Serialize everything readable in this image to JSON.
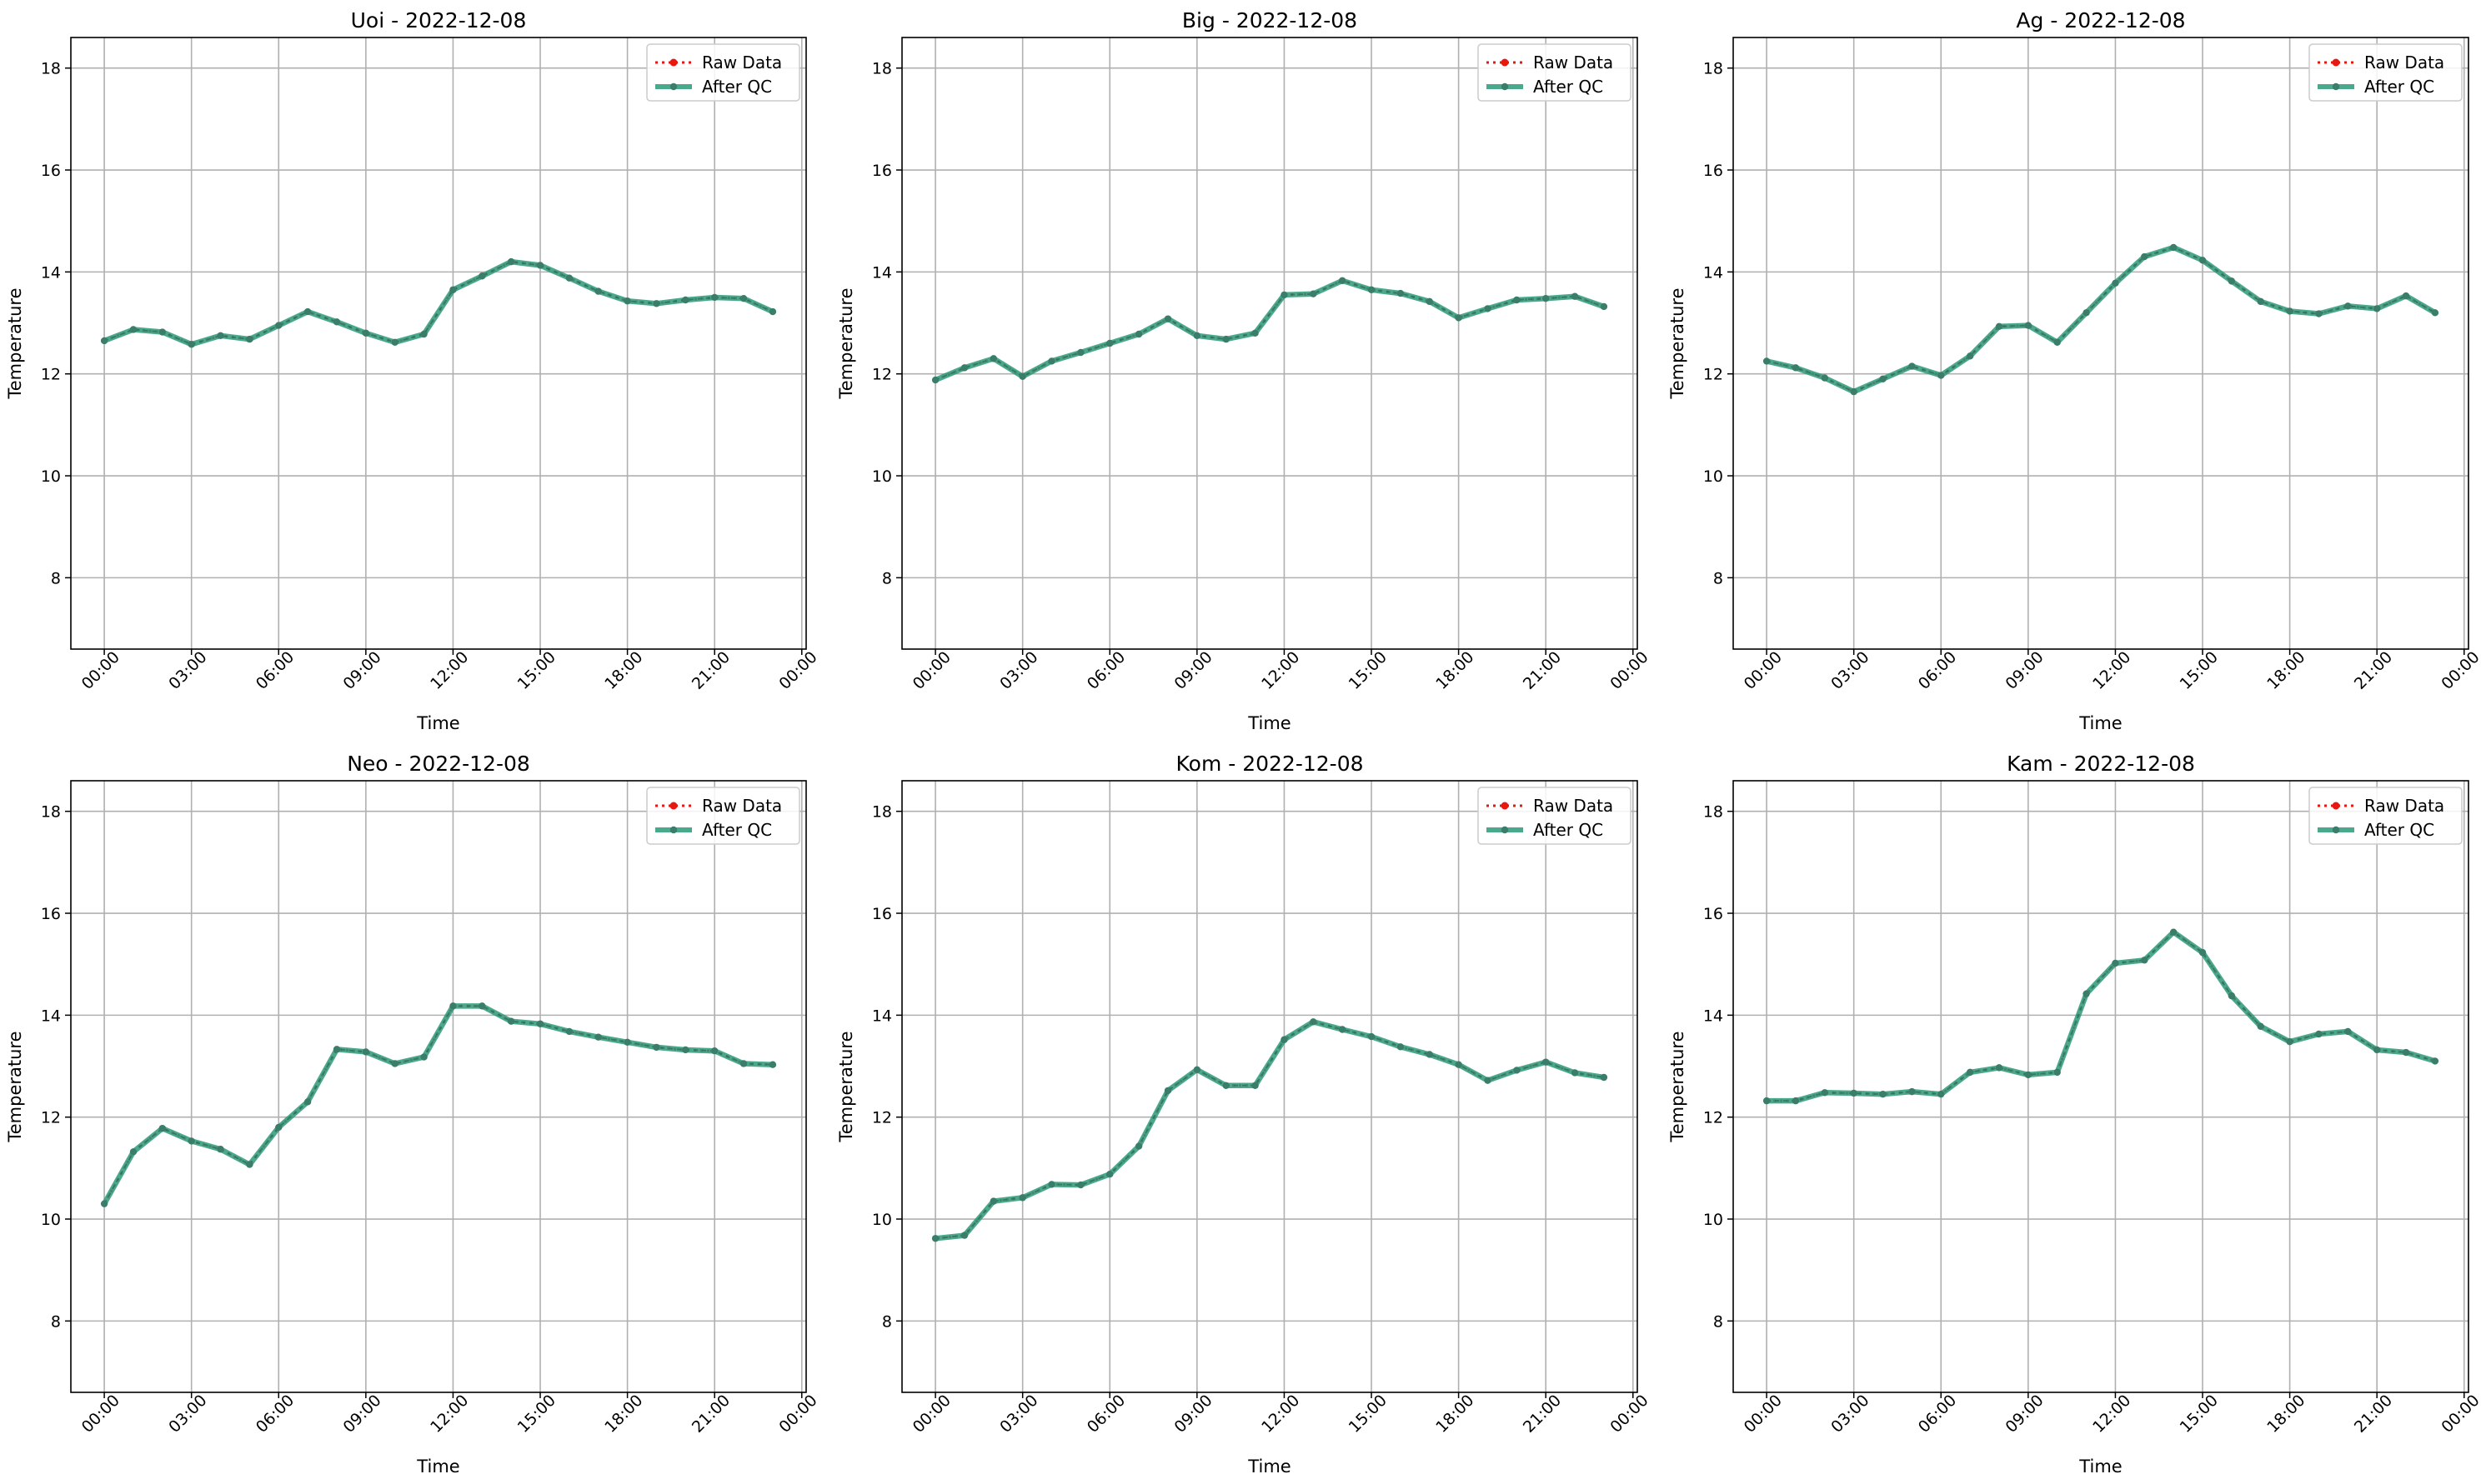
{
  "figure": {
    "legend_placement": "upper right",
    "grid": true,
    "colors": {
      "raw": "#e8170f",
      "after_qc": "#2a9a78",
      "marker": "#3a7d6a",
      "grid": "#b0b0b0"
    }
  },
  "chart_data": [
    {
      "type": "line",
      "title": "Uoi - 2022-12-08",
      "xlabel": "Time",
      "ylabel": "Temperature",
      "ylim": [
        6.6,
        18.6
      ],
      "yticks": [
        "8",
        "10",
        "12",
        "14",
        "16",
        "18"
      ],
      "xticks": [
        "00:00",
        "03:00",
        "06:00",
        "09:00",
        "12:00",
        "15:00",
        "18:00",
        "21:00",
        "00:00"
      ],
      "legend": [
        "Raw Data",
        "After QC"
      ],
      "x": [
        "00:00",
        "01:00",
        "02:00",
        "03:00",
        "04:00",
        "05:00",
        "06:00",
        "07:00",
        "08:00",
        "09:00",
        "10:00",
        "11:00",
        "12:00",
        "13:00",
        "14:00",
        "15:00",
        "16:00",
        "17:00",
        "18:00",
        "19:00",
        "20:00",
        "21:00",
        "22:00",
        "23:00"
      ],
      "series": [
        {
          "name": "Raw Data",
          "values": [
            12.65,
            12.87,
            12.82,
            12.58,
            12.75,
            12.68,
            12.95,
            13.22,
            13.02,
            12.8,
            12.62,
            12.78,
            13.65,
            13.92,
            14.2,
            14.13,
            13.88,
            13.62,
            13.43,
            13.38,
            13.45,
            13.5,
            13.48,
            13.22
          ]
        },
        {
          "name": "After QC",
          "values": [
            12.65,
            12.87,
            12.82,
            12.58,
            12.75,
            12.68,
            12.95,
            13.22,
            13.02,
            12.8,
            12.62,
            12.78,
            13.65,
            13.92,
            14.2,
            14.13,
            13.88,
            13.62,
            13.43,
            13.38,
            13.45,
            13.5,
            13.48,
            13.22
          ]
        }
      ]
    },
    {
      "type": "line",
      "title": "Big - 2022-12-08",
      "xlabel": "Time",
      "ylabel": "Temperature",
      "ylim": [
        6.6,
        18.6
      ],
      "yticks": [
        "8",
        "10",
        "12",
        "14",
        "16",
        "18"
      ],
      "xticks": [
        "00:00",
        "03:00",
        "06:00",
        "09:00",
        "12:00",
        "15:00",
        "18:00",
        "21:00",
        "00:00"
      ],
      "legend": [
        "Raw Data",
        "After QC"
      ],
      "x": [
        "00:00",
        "01:00",
        "02:00",
        "03:00",
        "04:00",
        "05:00",
        "06:00",
        "07:00",
        "08:00",
        "09:00",
        "10:00",
        "11:00",
        "12:00",
        "13:00",
        "14:00",
        "15:00",
        "16:00",
        "17:00",
        "18:00",
        "19:00",
        "20:00",
        "21:00",
        "22:00",
        "23:00"
      ],
      "series": [
        {
          "name": "Raw Data",
          "values": [
            11.88,
            12.12,
            12.3,
            11.95,
            12.25,
            12.42,
            12.6,
            12.78,
            13.08,
            12.75,
            12.68,
            12.8,
            13.55,
            13.57,
            13.83,
            13.65,
            13.58,
            13.42,
            13.1,
            13.28,
            13.45,
            13.48,
            13.52,
            13.32
          ]
        },
        {
          "name": "After QC",
          "values": [
            11.88,
            12.12,
            12.3,
            11.95,
            12.25,
            12.42,
            12.6,
            12.78,
            13.08,
            12.75,
            12.68,
            12.8,
            13.55,
            13.57,
            13.83,
            13.65,
            13.58,
            13.42,
            13.1,
            13.28,
            13.45,
            13.48,
            13.52,
            13.32
          ]
        }
      ]
    },
    {
      "type": "line",
      "title": "Ag - 2022-12-08",
      "xlabel": "Time",
      "ylabel": "Temperature",
      "ylim": [
        6.6,
        18.6
      ],
      "yticks": [
        "8",
        "10",
        "12",
        "14",
        "16",
        "18"
      ],
      "xticks": [
        "00:00",
        "03:00",
        "06:00",
        "09:00",
        "12:00",
        "15:00",
        "18:00",
        "21:00",
        "00:00"
      ],
      "legend": [
        "Raw Data",
        "After QC"
      ],
      "x": [
        "00:00",
        "01:00",
        "02:00",
        "03:00",
        "04:00",
        "05:00",
        "06:00",
        "07:00",
        "08:00",
        "09:00",
        "10:00",
        "11:00",
        "12:00",
        "13:00",
        "14:00",
        "15:00",
        "16:00",
        "17:00",
        "18:00",
        "19:00",
        "20:00",
        "21:00",
        "22:00",
        "23:00"
      ],
      "series": [
        {
          "name": "Raw Data",
          "values": [
            12.25,
            12.12,
            11.92,
            11.65,
            11.9,
            12.15,
            11.97,
            12.35,
            12.93,
            12.95,
            12.62,
            13.2,
            13.78,
            14.3,
            14.48,
            14.23,
            13.82,
            13.42,
            13.23,
            13.18,
            13.33,
            13.28,
            13.53,
            13.2
          ]
        },
        {
          "name": "After QC",
          "values": [
            12.25,
            12.12,
            11.92,
            11.65,
            11.9,
            12.15,
            11.97,
            12.35,
            12.93,
            12.95,
            12.62,
            13.2,
            13.78,
            14.3,
            14.48,
            14.23,
            13.82,
            13.42,
            13.23,
            13.18,
            13.33,
            13.28,
            13.53,
            13.2
          ]
        }
      ]
    },
    {
      "type": "line",
      "title": "Neo - 2022-12-08",
      "xlabel": "Time",
      "ylabel": "Temperature",
      "ylim": [
        6.6,
        18.6
      ],
      "yticks": [
        "8",
        "10",
        "12",
        "14",
        "16",
        "18"
      ],
      "xticks": [
        "00:00",
        "03:00",
        "06:00",
        "09:00",
        "12:00",
        "15:00",
        "18:00",
        "21:00",
        "00:00"
      ],
      "legend": [
        "Raw Data",
        "After QC"
      ],
      "x": [
        "00:00",
        "01:00",
        "02:00",
        "03:00",
        "04:00",
        "05:00",
        "06:00",
        "07:00",
        "08:00",
        "09:00",
        "10:00",
        "11:00",
        "12:00",
        "13:00",
        "14:00",
        "15:00",
        "16:00",
        "17:00",
        "18:00",
        "19:00",
        "20:00",
        "21:00",
        "22:00",
        "23:00"
      ],
      "series": [
        {
          "name": "Raw Data",
          "values": [
            10.3,
            11.32,
            11.78,
            11.53,
            11.37,
            11.07,
            11.8,
            12.3,
            13.33,
            13.28,
            13.05,
            13.18,
            14.18,
            14.18,
            13.88,
            13.83,
            13.68,
            13.57,
            13.47,
            13.37,
            13.32,
            13.3,
            13.05,
            13.03
          ]
        },
        {
          "name": "After QC",
          "values": [
            10.3,
            11.32,
            11.78,
            11.53,
            11.37,
            11.07,
            11.8,
            12.3,
            13.33,
            13.28,
            13.05,
            13.18,
            14.18,
            14.18,
            13.88,
            13.83,
            13.68,
            13.57,
            13.47,
            13.37,
            13.32,
            13.3,
            13.05,
            13.03
          ]
        }
      ]
    },
    {
      "type": "line",
      "title": "Kom - 2022-12-08",
      "xlabel": "Time",
      "ylabel": "Temperature",
      "ylim": [
        6.6,
        18.6
      ],
      "yticks": [
        "8",
        "10",
        "12",
        "14",
        "16",
        "18"
      ],
      "xticks": [
        "00:00",
        "03:00",
        "06:00",
        "09:00",
        "12:00",
        "15:00",
        "18:00",
        "21:00",
        "00:00"
      ],
      "legend": [
        "Raw Data",
        "After QC"
      ],
      "x": [
        "00:00",
        "01:00",
        "02:00",
        "03:00",
        "04:00",
        "05:00",
        "06:00",
        "07:00",
        "08:00",
        "09:00",
        "10:00",
        "11:00",
        "12:00",
        "13:00",
        "14:00",
        "15:00",
        "16:00",
        "17:00",
        "18:00",
        "19:00",
        "20:00",
        "21:00",
        "22:00",
        "23:00"
      ],
      "series": [
        {
          "name": "Raw Data",
          "values": [
            9.62,
            9.68,
            10.35,
            10.42,
            10.68,
            10.67,
            10.88,
            11.43,
            12.52,
            12.93,
            12.62,
            12.62,
            13.52,
            13.87,
            13.72,
            13.58,
            13.38,
            13.23,
            13.03,
            12.72,
            12.92,
            13.08,
            12.87,
            12.78
          ]
        },
        {
          "name": "After QC",
          "values": [
            9.62,
            9.68,
            10.35,
            10.42,
            10.68,
            10.67,
            10.88,
            11.43,
            12.52,
            12.93,
            12.62,
            12.62,
            13.52,
            13.87,
            13.72,
            13.58,
            13.38,
            13.23,
            13.03,
            12.72,
            12.92,
            13.08,
            12.87,
            12.78
          ]
        }
      ]
    },
    {
      "type": "line",
      "title": "Kam - 2022-12-08",
      "xlabel": "Time",
      "ylabel": "Temperature",
      "ylim": [
        6.6,
        18.6
      ],
      "yticks": [
        "8",
        "10",
        "12",
        "14",
        "16",
        "18"
      ],
      "xticks": [
        "00:00",
        "03:00",
        "06:00",
        "09:00",
        "12:00",
        "15:00",
        "18:00",
        "21:00",
        "00:00"
      ],
      "legend": [
        "Raw Data",
        "After QC"
      ],
      "x": [
        "00:00",
        "01:00",
        "02:00",
        "03:00",
        "04:00",
        "05:00",
        "06:00",
        "07:00",
        "08:00",
        "09:00",
        "10:00",
        "11:00",
        "12:00",
        "13:00",
        "14:00",
        "15:00",
        "16:00",
        "17:00",
        "18:00",
        "19:00",
        "20:00",
        "21:00",
        "22:00",
        "23:00"
      ],
      "series": [
        {
          "name": "Raw Data",
          "values": [
            12.32,
            12.32,
            12.48,
            12.47,
            12.45,
            12.5,
            12.45,
            12.88,
            12.97,
            12.83,
            12.88,
            14.42,
            15.02,
            15.08,
            15.63,
            15.23,
            14.38,
            13.78,
            13.48,
            13.63,
            13.68,
            13.32,
            13.27,
            13.1
          ]
        },
        {
          "name": "After QC",
          "values": [
            12.32,
            12.32,
            12.48,
            12.47,
            12.45,
            12.5,
            12.45,
            12.88,
            12.97,
            12.83,
            12.88,
            14.42,
            15.02,
            15.08,
            15.63,
            15.23,
            14.38,
            13.78,
            13.48,
            13.63,
            13.68,
            13.32,
            13.27,
            13.1
          ]
        }
      ]
    }
  ]
}
